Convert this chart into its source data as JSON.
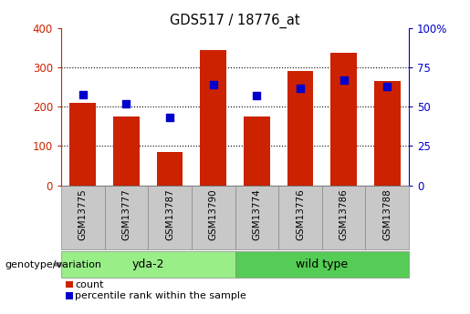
{
  "title": "GDS517 / 18776_at",
  "samples": [
    "GSM13775",
    "GSM13777",
    "GSM13787",
    "GSM13790",
    "GSM13774",
    "GSM13776",
    "GSM13786",
    "GSM13788"
  ],
  "counts": [
    210,
    175,
    85,
    345,
    175,
    290,
    338,
    265
  ],
  "percentile_ranks": [
    58,
    52,
    43,
    64,
    57,
    62,
    67,
    63
  ],
  "groups": [
    {
      "label": "yda-2",
      "start": 0,
      "end": 4,
      "color": "#99EE88"
    },
    {
      "label": "wild type",
      "start": 4,
      "end": 8,
      "color": "#55CC55"
    }
  ],
  "bar_color": "#CC2200",
  "dot_color": "#0000CC",
  "left_axis_color": "#CC2200",
  "right_axis_color": "#0000CC",
  "ylim_left": [
    0,
    400
  ],
  "ylim_right": [
    0,
    100
  ],
  "left_ticks": [
    0,
    100,
    200,
    300,
    400
  ],
  "right_ticks": [
    0,
    25,
    50,
    75,
    100
  ],
  "right_tick_labels": [
    "0",
    "25",
    "50",
    "75",
    "100%"
  ],
  "grid_vals": [
    100,
    200,
    300
  ],
  "group_label": "genotype/variation",
  "legend_count": "count",
  "legend_percentile": "percentile rank within the sample",
  "tick_label_bg": "#C8C8C8",
  "bar_width": 0.6
}
